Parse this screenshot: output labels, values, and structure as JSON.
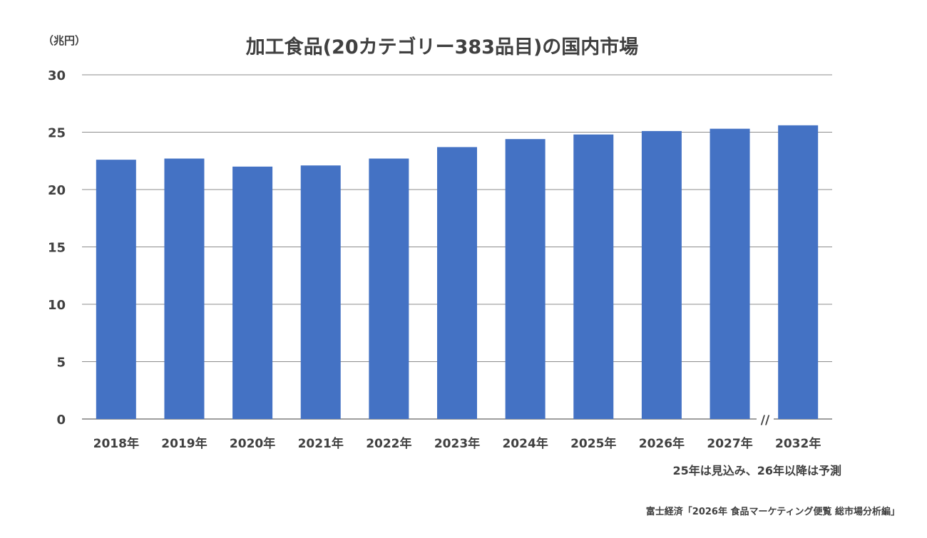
{
  "chart_data": {
    "type": "bar",
    "title": "加工食品(20カテゴリー383品目)の国内市場",
    "ylabel": "（兆円）",
    "xlabel": "",
    "categories": [
      "2018年",
      "2019年",
      "2020年",
      "2021年",
      "2022年",
      "2023年",
      "2024年",
      "2025年",
      "2026年",
      "2027年",
      "2032年"
    ],
    "values": [
      22.6,
      22.7,
      22.0,
      22.1,
      22.7,
      23.7,
      24.4,
      24.8,
      25.1,
      25.3,
      25.6
    ],
    "ylim": [
      0,
      30
    ],
    "yticks": [
      0,
      5,
      10,
      15,
      20,
      25,
      30
    ],
    "grid": true,
    "axis_break_symbol": "//",
    "bar_color": "#4472c4",
    "note": "25年は見込み、26年以降は予測",
    "source": "富士経済「2026年 食品マーケティング便覧 総市場分析編」"
  }
}
